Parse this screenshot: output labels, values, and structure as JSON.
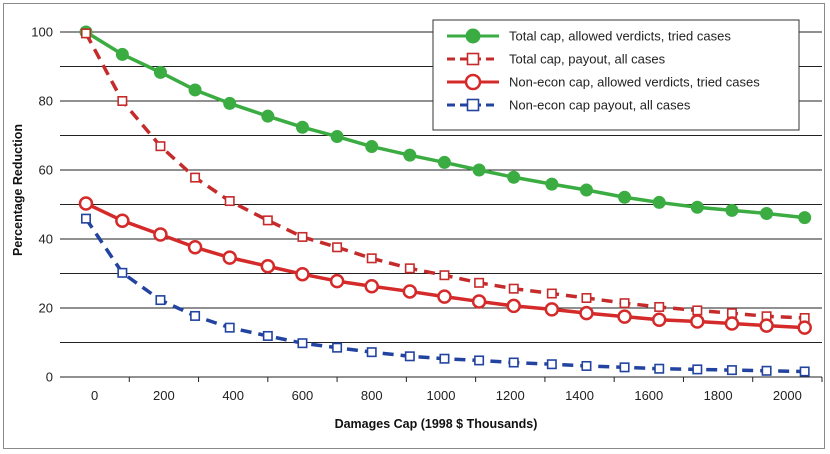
{
  "chart_data": {
    "type": "line",
    "xlabel": "Damages Cap (1998 $ Thousands)",
    "ylabel": "Percentage Reduction",
    "xlim": [
      -100,
      2100
    ],
    "ylim": [
      0,
      100
    ],
    "xticks": [
      0,
      200,
      400,
      600,
      800,
      1000,
      1200,
      1400,
      1600,
      1800,
      2000
    ],
    "xtick_labels": [
      "0",
      "200",
      "400",
      "600",
      "800",
      "1000",
      "1200",
      "1400",
      "1600",
      "1800",
      "2000"
    ],
    "yticks": [
      0,
      20,
      40,
      60,
      80,
      100
    ],
    "ytick_labels": [
      "0",
      "20",
      "40",
      "60",
      "80",
      "100"
    ],
    "grid": "horizontal",
    "legend_position": "top-right",
    "x": [
      -25,
      80,
      190,
      290,
      390,
      500,
      600,
      700,
      800,
      910,
      1010,
      1110,
      1210,
      1320,
      1420,
      1530,
      1630,
      1740,
      1840,
      1940,
      2050
    ],
    "series": [
      {
        "name": "Total cap, allowed verdicts, tried cases",
        "color": "#3aac42",
        "marker": "filled-circle",
        "dashed": false,
        "values": [
          100,
          93.5,
          88.3,
          83.2,
          79.3,
          75.6,
          72.4,
          69.7,
          66.8,
          64.3,
          62.2,
          60,
          57.9,
          55.9,
          54.2,
          52.1,
          50.6,
          49.2,
          48.3,
          47.4,
          46.2
        ]
      },
      {
        "name": "Total cap, payout, all cases",
        "color": "#c62b2b",
        "marker": "open-square",
        "dashed": true,
        "values": [
          99.6,
          80,
          66.9,
          57.8,
          51,
          45.4,
          40.6,
          37.6,
          34.4,
          31.5,
          29.5,
          27.3,
          25.6,
          24.2,
          22.9,
          21.4,
          20.3,
          19.3,
          18.5,
          17.6,
          17.1
        ]
      },
      {
        "name": "Non-econ cap, allowed verdicts, tried cases",
        "color": "#d42a2a",
        "marker": "open-circle",
        "dashed": false,
        "values": [
          50.3,
          45.3,
          41.3,
          37.6,
          34.6,
          32.1,
          29.8,
          27.8,
          26.3,
          24.8,
          23.3,
          21.9,
          20.6,
          19.6,
          18.5,
          17.5,
          16.6,
          16.1,
          15.5,
          14.9,
          14.3
        ]
      },
      {
        "name": "Non-econ cap payout, all cases",
        "color": "#2244a0",
        "marker": "open-square",
        "dashed": true,
        "values": [
          45.9,
          30.2,
          22.3,
          17.7,
          14.3,
          11.9,
          9.8,
          8.5,
          7.2,
          6,
          5.3,
          4.8,
          4.2,
          3.7,
          3.2,
          2.8,
          2.4,
          2.2,
          2,
          1.8,
          1.6
        ]
      }
    ]
  }
}
